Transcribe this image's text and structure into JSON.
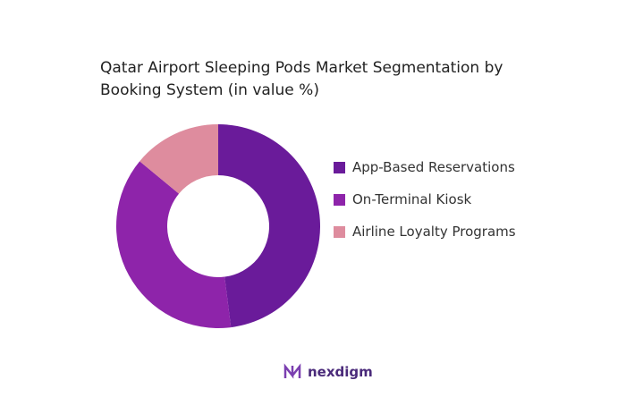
{
  "chart_data": {
    "type": "donut",
    "title": "Qatar Airport Sleeping Pods Market Segmentation by Booking System (in value %)",
    "categories": [
      "App-Based Reservations",
      "On-Terminal Kiosk",
      "Airline Loyalty Programs"
    ],
    "values": [
      48,
      38,
      14
    ],
    "colors": [
      "#6a1b9a",
      "#8e24aa",
      "#de8c9e"
    ],
    "legend": "right"
  },
  "brand": "nexdigm"
}
